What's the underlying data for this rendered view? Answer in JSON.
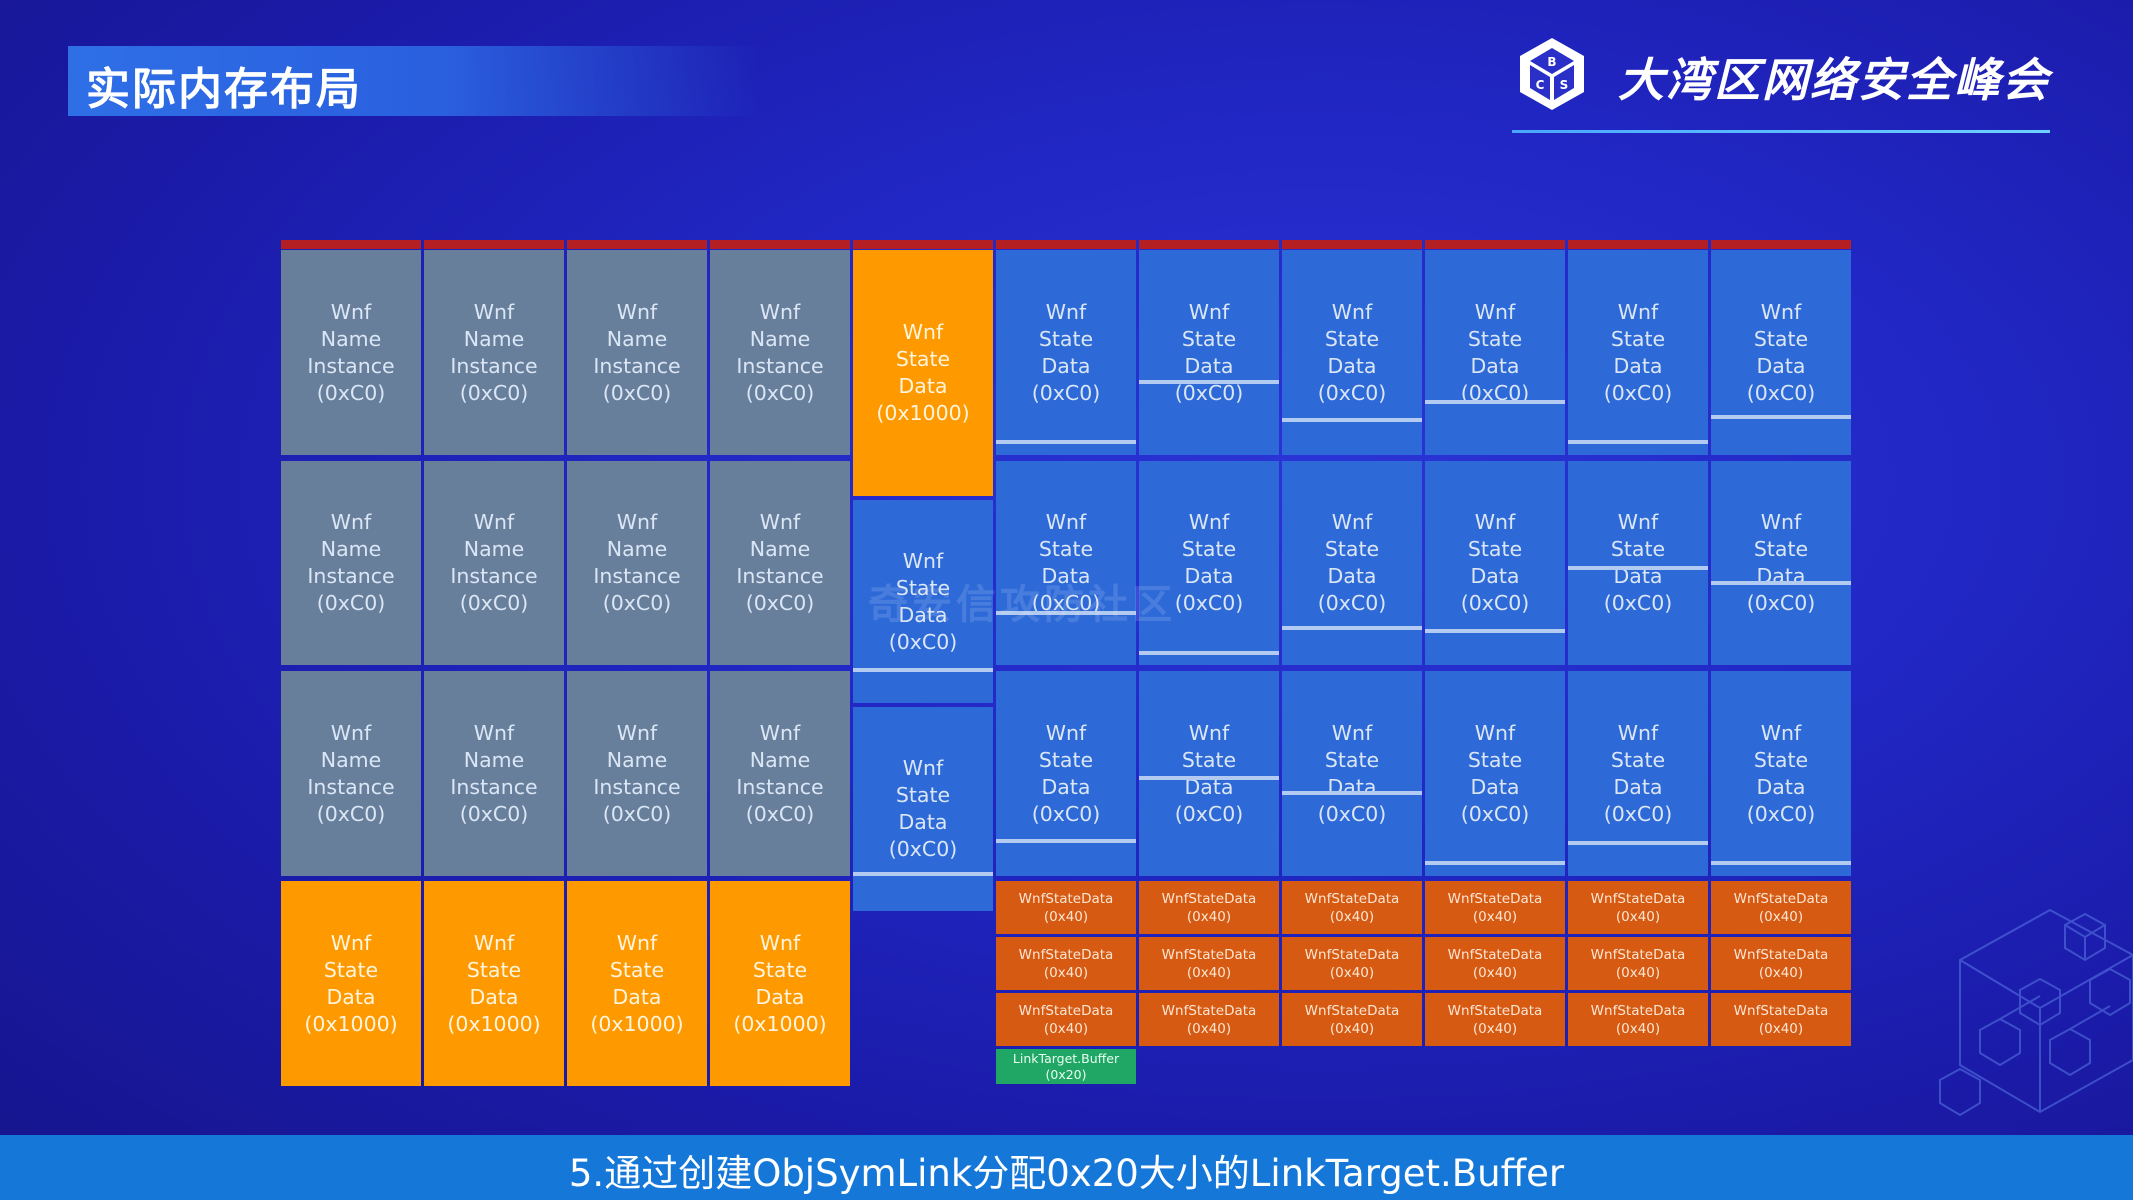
{
  "header": {
    "title": "实际内存布局",
    "brand": "大湾区网络安全峰会",
    "logo_letters": [
      "B",
      "C",
      "S"
    ]
  },
  "watermark": "奇安信攻防社区",
  "caption": "5.通过创建ObjSymLink分配0x20大小的LinkTarget.Buffer",
  "colors": {
    "name_instance": "#687f9c",
    "state_data": "#2d6ad8",
    "state_data_large": "#fe9a00",
    "state_data_small": "#d65a12",
    "link_target": "#21a765",
    "free": "#949494",
    "top_border": "#b41f24",
    "caption_bar": "#1577d8"
  },
  "memory_layout": {
    "columns": [
      {
        "blocks": [
          {
            "kind": "name",
            "label": "Wnf\nName\nInstance\n(0xC0)"
          },
          {
            "kind": "name",
            "label": "Wnf\nName\nInstance\n(0xC0)"
          },
          {
            "kind": "name",
            "label": "Wnf\nName\nInstance\n(0xC0)"
          },
          {
            "kind": "big",
            "label": "Wnf\nState\nData\n(0x1000)"
          }
        ]
      },
      {
        "blocks": [
          {
            "kind": "name",
            "label": "Wnf\nName\nInstance\n(0xC0)"
          },
          {
            "kind": "name",
            "label": "Wnf\nName\nInstance\n(0xC0)"
          },
          {
            "kind": "name",
            "label": "Wnf\nName\nInstance\n(0xC0)"
          },
          {
            "kind": "big",
            "label": "Wnf\nState\nData\n(0x1000)"
          }
        ]
      },
      {
        "blocks": [
          {
            "kind": "name",
            "label": "Wnf\nName\nInstance\n(0xC0)"
          },
          {
            "kind": "name",
            "label": "Wnf\nName\nInstance\n(0xC0)"
          },
          {
            "kind": "name",
            "label": "Wnf\nName\nInstance\n(0xC0)"
          },
          {
            "kind": "big",
            "label": "Wnf\nState\nData\n(0x1000)"
          }
        ]
      },
      {
        "blocks": [
          {
            "kind": "name",
            "label": "Wnf\nName\nInstance\n(0xC0)"
          },
          {
            "kind": "name",
            "label": "Wnf\nName\nInstance\n(0xC0)"
          },
          {
            "kind": "name",
            "label": "Wnf\nName\nInstance\n(0xC0)"
          },
          {
            "kind": "big",
            "label": "Wnf\nState\nData\n(0x1000)"
          }
        ]
      },
      {
        "blocks": [
          {
            "kind": "big",
            "label": "Wnf\nState\nData\n(0x1000)"
          },
          {
            "kind": "state",
            "label": "Wnf\nState\nData\n(0xC0)"
          },
          {
            "kind": "state",
            "label": "Wnf\nState\nData\n(0xC0)"
          },
          {
            "kind": "free",
            "label": ""
          }
        ]
      },
      {
        "blocks": [
          {
            "kind": "state",
            "label": "Wnf\nState\nData\n(0xC0)"
          },
          {
            "kind": "state",
            "label": "Wnf\nState\nData\n(0xC0)"
          },
          {
            "kind": "state",
            "label": "Wnf\nState\nData\n(0xC0)"
          },
          {
            "kind": "small",
            "label": "WnfStateData\n(0x40)"
          },
          {
            "kind": "small",
            "label": "WnfStateData\n(0x40)"
          },
          {
            "kind": "small",
            "label": "WnfStateData\n(0x40)"
          },
          {
            "kind": "link",
            "label": "LinkTarget.Buffer\n(0x20)"
          }
        ]
      },
      {
        "blocks": [
          {
            "kind": "state",
            "label": "Wnf\nState\nData\n(0xC0)"
          },
          {
            "kind": "state",
            "label": "Wnf\nState\nData\n(0xC0)"
          },
          {
            "kind": "state",
            "label": "Wnf\nState\nData\n(0xC0)"
          },
          {
            "kind": "small",
            "label": "WnfStateData\n(0x40)"
          },
          {
            "kind": "small",
            "label": "WnfStateData\n(0x40)"
          },
          {
            "kind": "small",
            "label": "WnfStateData\n(0x40)"
          }
        ]
      },
      {
        "blocks": [
          {
            "kind": "state",
            "label": "Wnf\nState\nData\n(0xC0)"
          },
          {
            "kind": "state",
            "label": "Wnf\nState\nData\n(0xC0)"
          },
          {
            "kind": "state",
            "label": "Wnf\nState\nData\n(0xC0)"
          },
          {
            "kind": "small",
            "label": "WnfStateData\n(0x40)"
          },
          {
            "kind": "small",
            "label": "WnfStateData\n(0x40)"
          },
          {
            "kind": "small",
            "label": "WnfStateData\n(0x40)"
          }
        ]
      },
      {
        "blocks": [
          {
            "kind": "state",
            "label": "Wnf\nState\nData\n(0xC0)"
          },
          {
            "kind": "state",
            "label": "Wnf\nState\nData\n(0xC0)"
          },
          {
            "kind": "state",
            "label": "Wnf\nState\nData\n(0xC0)"
          },
          {
            "kind": "small",
            "label": "WnfStateData\n(0x40)"
          },
          {
            "kind": "small",
            "label": "WnfStateData\n(0x40)"
          },
          {
            "kind": "small",
            "label": "WnfStateData\n(0x40)"
          }
        ]
      },
      {
        "blocks": [
          {
            "kind": "state",
            "label": "Wnf\nState\nData\n(0xC0)"
          },
          {
            "kind": "state",
            "label": "Wnf\nState\nData\n(0xC0)"
          },
          {
            "kind": "state",
            "label": "Wnf\nState\nData\n(0xC0)"
          },
          {
            "kind": "small",
            "label": "WnfStateData\n(0x40)"
          },
          {
            "kind": "small",
            "label": "WnfStateData\n(0x40)"
          },
          {
            "kind": "small",
            "label": "WnfStateData\n(0x40)"
          }
        ]
      },
      {
        "blocks": [
          {
            "kind": "state",
            "label": "Wnf\nState\nData\n(0xC0)"
          },
          {
            "kind": "state",
            "label": "Wnf\nState\nData\n(0xC0)"
          },
          {
            "kind": "state",
            "label": "Wnf\nState\nData\n(0xC0)"
          },
          {
            "kind": "small",
            "label": "WnfStateData\n(0x40)"
          },
          {
            "kind": "small",
            "label": "WnfStateData\n(0x40)"
          },
          {
            "kind": "small",
            "label": "WnfStateData\n(0x40)"
          }
        ]
      }
    ]
  }
}
